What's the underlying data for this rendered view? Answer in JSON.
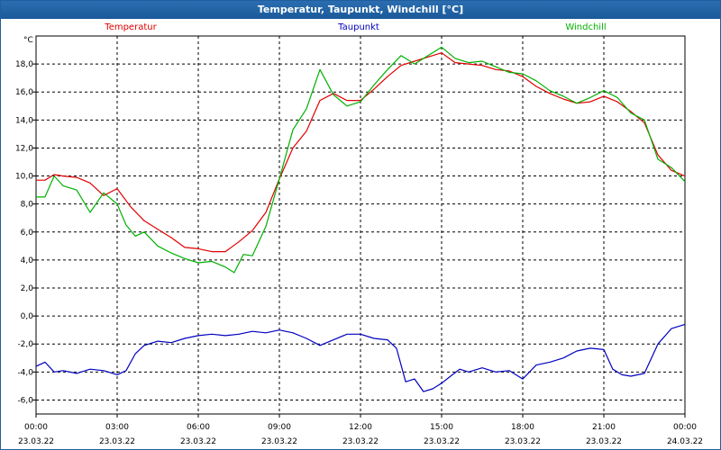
{
  "window": {
    "title": "Temperatur, Taupunkt, Windchill [°C]"
  },
  "chart_data": {
    "type": "line",
    "title": "Temperatur, Taupunkt, Windchill [°C]",
    "ylabel": "°C",
    "ylim": [
      -7,
      20
    ],
    "xlim": [
      0,
      24
    ],
    "grid": true,
    "legend": "top",
    "y_ticks": [
      "-6,0",
      "-4,0",
      "-2,0",
      "0,0",
      "2,0",
      "4,0",
      "6,0",
      "8,0",
      "10,0",
      "12,0",
      "14,0",
      "16,0",
      "18,0"
    ],
    "x_ticks": [
      {
        "time": "00:00",
        "date": "23.03.22"
      },
      {
        "time": "03:00",
        "date": "23.03.22"
      },
      {
        "time": "06:00",
        "date": "23.03.22"
      },
      {
        "time": "09:00",
        "date": "23.03.22"
      },
      {
        "time": "12:00",
        "date": "23.03.22"
      },
      {
        "time": "15:00",
        "date": "23.03.22"
      },
      {
        "time": "18:00",
        "date": "23.03.22"
      },
      {
        "time": "21:00",
        "date": "23.03.22"
      },
      {
        "time": "00:00",
        "date": "24.03.22"
      }
    ],
    "series": [
      {
        "name": "Temperatur",
        "color": "#e00000",
        "points": [
          [
            0,
            9.7
          ],
          [
            0.33,
            9.7
          ],
          [
            0.67,
            10.1
          ],
          [
            1,
            10.0
          ],
          [
            1.5,
            9.9
          ],
          [
            2,
            9.5
          ],
          [
            2.5,
            8.6
          ],
          [
            3,
            9.1
          ],
          [
            3.5,
            7.8
          ],
          [
            4,
            6.8
          ],
          [
            4.5,
            6.2
          ],
          [
            5,
            5.6
          ],
          [
            5.5,
            4.9
          ],
          [
            6,
            4.8
          ],
          [
            6.5,
            4.6
          ],
          [
            7,
            4.6
          ],
          [
            7.5,
            5.3
          ],
          [
            8,
            6.1
          ],
          [
            8.5,
            7.4
          ],
          [
            9,
            9.8
          ],
          [
            9.5,
            12.0
          ],
          [
            10,
            13.2
          ],
          [
            10.5,
            15.4
          ],
          [
            11,
            15.9
          ],
          [
            11.5,
            15.4
          ],
          [
            12,
            15.4
          ],
          [
            12.5,
            16.2
          ],
          [
            13,
            17.1
          ],
          [
            13.5,
            17.9
          ],
          [
            14,
            18.2
          ],
          [
            14.5,
            18.5
          ],
          [
            15,
            18.8
          ],
          [
            15.5,
            18.1
          ],
          [
            16,
            18.0
          ],
          [
            16.5,
            17.9
          ],
          [
            17,
            17.6
          ],
          [
            17.5,
            17.5
          ],
          [
            18,
            17.1
          ],
          [
            18.5,
            16.4
          ],
          [
            19,
            15.9
          ],
          [
            19.5,
            15.5
          ],
          [
            20,
            15.2
          ],
          [
            20.5,
            15.3
          ],
          [
            21,
            15.7
          ],
          [
            21.5,
            15.3
          ],
          [
            22,
            14.6
          ],
          [
            22.5,
            13.8
          ],
          [
            23,
            11.5
          ],
          [
            23.5,
            10.4
          ],
          [
            24,
            10.0
          ]
        ]
      },
      {
        "name": "Taupunkt",
        "color": "#0000c0",
        "points": [
          [
            0,
            -3.6
          ],
          [
            0.33,
            -3.3
          ],
          [
            0.67,
            -4.0
          ],
          [
            1,
            -3.9
          ],
          [
            1.5,
            -4.1
          ],
          [
            2,
            -3.8
          ],
          [
            2.5,
            -3.9
          ],
          [
            3,
            -4.2
          ],
          [
            3.33,
            -3.9
          ],
          [
            3.67,
            -2.7
          ],
          [
            4,
            -2.1
          ],
          [
            4.5,
            -1.8
          ],
          [
            5,
            -1.9
          ],
          [
            5.5,
            -1.6
          ],
          [
            6,
            -1.4
          ],
          [
            6.5,
            -1.3
          ],
          [
            7,
            -1.4
          ],
          [
            7.5,
            -1.3
          ],
          [
            8,
            -1.1
          ],
          [
            8.5,
            -1.2
          ],
          [
            9,
            -1.0
          ],
          [
            9.5,
            -1.2
          ],
          [
            10,
            -1.6
          ],
          [
            10.5,
            -2.1
          ],
          [
            11,
            -1.7
          ],
          [
            11.5,
            -1.3
          ],
          [
            12,
            -1.3
          ],
          [
            12.5,
            -1.6
          ],
          [
            13,
            -1.7
          ],
          [
            13.33,
            -2.3
          ],
          [
            13.67,
            -4.7
          ],
          [
            14,
            -4.5
          ],
          [
            14.33,
            -5.4
          ],
          [
            14.67,
            -5.2
          ],
          [
            15,
            -4.8
          ],
          [
            15.33,
            -4.3
          ],
          [
            15.67,
            -3.8
          ],
          [
            16,
            -4.0
          ],
          [
            16.5,
            -3.7
          ],
          [
            17,
            -4.0
          ],
          [
            17.5,
            -3.9
          ],
          [
            18,
            -4.5
          ],
          [
            18.5,
            -3.5
          ],
          [
            19,
            -3.3
          ],
          [
            19.5,
            -3.0
          ],
          [
            20,
            -2.5
          ],
          [
            20.5,
            -2.3
          ],
          [
            21,
            -2.4
          ],
          [
            21.33,
            -3.8
          ],
          [
            21.67,
            -4.2
          ],
          [
            22,
            -4.3
          ],
          [
            22.5,
            -4.1
          ],
          [
            23,
            -2.0
          ],
          [
            23.5,
            -0.9
          ],
          [
            24,
            -0.6
          ]
        ]
      },
      {
        "name": "Windchill",
        "color": "#00b000",
        "points": [
          [
            0,
            8.5
          ],
          [
            0.33,
            8.5
          ],
          [
            0.67,
            10.0
          ],
          [
            1,
            9.3
          ],
          [
            1.5,
            9.0
          ],
          [
            2,
            7.4
          ],
          [
            2.5,
            8.8
          ],
          [
            3,
            8.0
          ],
          [
            3.33,
            6.5
          ],
          [
            3.67,
            5.7
          ],
          [
            4,
            6.0
          ],
          [
            4.5,
            5.0
          ],
          [
            5,
            4.5
          ],
          [
            5.5,
            4.1
          ],
          [
            6,
            3.8
          ],
          [
            6.5,
            3.9
          ],
          [
            7,
            3.5
          ],
          [
            7.33,
            3.1
          ],
          [
            7.67,
            4.4
          ],
          [
            8,
            4.3
          ],
          [
            8.5,
            6.4
          ],
          [
            9,
            9.8
          ],
          [
            9.5,
            13.3
          ],
          [
            10,
            14.8
          ],
          [
            10.5,
            17.6
          ],
          [
            11,
            15.8
          ],
          [
            11.5,
            15.0
          ],
          [
            12,
            15.3
          ],
          [
            12.5,
            16.5
          ],
          [
            13,
            17.6
          ],
          [
            13.5,
            18.6
          ],
          [
            14,
            18.0
          ],
          [
            14.5,
            18.6
          ],
          [
            15,
            19.2
          ],
          [
            15.5,
            18.4
          ],
          [
            16,
            18.1
          ],
          [
            16.5,
            18.2
          ],
          [
            17,
            17.8
          ],
          [
            17.5,
            17.4
          ],
          [
            18,
            17.3
          ],
          [
            18.5,
            16.8
          ],
          [
            19,
            16.1
          ],
          [
            19.5,
            15.7
          ],
          [
            20,
            15.2
          ],
          [
            20.5,
            15.6
          ],
          [
            21,
            16.1
          ],
          [
            21.5,
            15.6
          ],
          [
            22,
            14.5
          ],
          [
            22.5,
            14.0
          ],
          [
            23,
            11.2
          ],
          [
            23.5,
            10.6
          ],
          [
            24,
            9.6
          ]
        ]
      }
    ]
  }
}
